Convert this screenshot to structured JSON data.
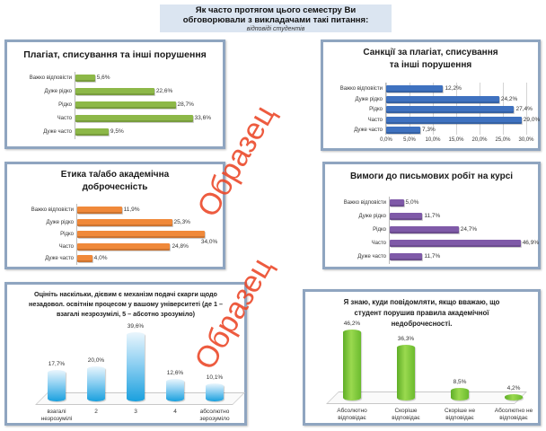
{
  "header": {
    "title": "Як часто протягом цього семестру Ви обговорювали з викладачами такі питання:",
    "title_line1": "Як часто протягом цього семестру Ви",
    "title_line2": "обговорювали з викладачами такі питання:",
    "subtitle": "відповіді студентів"
  },
  "watermark": {
    "text": "Образец",
    "color": "#ec4a2b"
  },
  "chart_data": [
    {
      "id": "plagiarism",
      "type": "bar",
      "orientation": "horizontal",
      "title": "Плагіат, списування  та інші порушення",
      "categories": [
        "Важко відповісти",
        "Дуже рідко",
        "Рідко",
        "Часто",
        "Дуже часто"
      ],
      "values": [
        5.6,
        22.6,
        28.7,
        33.6,
        9.5
      ],
      "value_labels": [
        "5,6%",
        "22,6%",
        "28,7%",
        "33,6%",
        "9,5%"
      ],
      "color": "#8db848",
      "xlim": [
        0,
        35
      ],
      "grid": false
    },
    {
      "id": "sanctions",
      "type": "bar",
      "orientation": "horizontal",
      "title": "Санкції за плагіат, списування та інші порушення",
      "title_line1": "Санкції за плагіат, списування",
      "title_line2": "та інші порушення",
      "categories": [
        "Важко відповісти",
        "Дуже рідко",
        "Рідко",
        "Часто",
        "Дуже часто"
      ],
      "values": [
        12.2,
        24.2,
        27.4,
        29.0,
        7.3
      ],
      "value_labels": [
        "12,2%",
        "24,2%",
        "27,4%",
        "29,0%",
        "7,3%"
      ],
      "color": "#3f72c0",
      "xlim": [
        0,
        30
      ],
      "xticks": [
        "0,0%",
        "5,0%",
        "10,0%",
        "15,0%",
        "20,0%",
        "25,0%",
        "30,0%"
      ],
      "grid": true
    },
    {
      "id": "ethics",
      "type": "bar",
      "orientation": "horizontal",
      "title": "Етика та/або академічна доброчесність",
      "title_line1": "Етика та/або академічна",
      "title_line2": "доброчесність",
      "categories": [
        "Важко відповісти",
        "Дуже рідко",
        "Рідко",
        "Часто",
        "Дуже часто"
      ],
      "values": [
        11.9,
        25.3,
        34.0,
        24.8,
        4.0
      ],
      "value_labels": [
        "11,9%",
        "25,3%",
        "34,0%",
        "24,8%",
        "4,0%"
      ],
      "color": "#f0893a",
      "xlim": [
        0,
        35
      ],
      "grid": false
    },
    {
      "id": "writing",
      "type": "bar",
      "orientation": "horizontal",
      "title": "Вимоги до письмових  робіт на курсі",
      "categories": [
        "Важко відповісти",
        "Дуже рідко",
        "Рідко",
        "Часто",
        "Дуже часто"
      ],
      "values": [
        5.0,
        11.7,
        24.7,
        46.9,
        11.7
      ],
      "value_labels": [
        "5,0%",
        "11,7%",
        "24,7%",
        "46,9%",
        "11,7%"
      ],
      "color": "#7f5aa8",
      "xlim": [
        0,
        47
      ],
      "grid": false
    },
    {
      "id": "complaints",
      "type": "bar",
      "orientation": "vertical",
      "title": "Оцініть наскільки,  дієвим є механізм подачі скарги щодо незадовол. освітнім  процесом у вашому університеті (де 1 – взагалі незрозумілі, 5 – абсотно зрозуміло)",
      "title_line1": "Оцініть наскільки,  дієвим є механізм подачі скарги щодо",
      "title_line2": "незадовол. освітнім  процесом у вашому університеті (де 1 –",
      "title_line3": "взагалі незрозумілі, 5 – абсотно зрозуміло)",
      "categories": [
        "взагалі незрозумілі",
        "2",
        "3",
        "4",
        "абсолютно зерозуміло"
      ],
      "category_lines": [
        [
          "взагалі",
          "незрозумілі"
        ],
        [
          "2",
          ""
        ],
        [
          "3",
          ""
        ],
        [
          "4",
          ""
        ],
        [
          "абсолютно",
          "зерозуміло"
        ]
      ],
      "values": [
        17.7,
        20.0,
        39.6,
        12.6,
        10.1
      ],
      "value_labels": [
        "17,7%",
        "20,0%",
        "39,6%",
        "12,6%",
        "10,1%"
      ],
      "color": "#2aa7e0",
      "ylim": [
        0,
        40
      ]
    },
    {
      "id": "reporting",
      "type": "bar",
      "orientation": "vertical",
      "title": "Я знаю, куди повідомляти, якщо вважаю, що студент порушив правила академічної недоброчесності.",
      "title_line1": "Я знаю, куди повідомляти, якщо вважаю, що",
      "title_line2": "студент порушив правила академічної",
      "title_line3": "недоброчесності.",
      "categories": [
        "Абсолютно відповідає",
        "Скоріше відповідає",
        "Скоріше не відповідає",
        "Абсолютно не відповідає"
      ],
      "category_lines": [
        [
          "Абсолютно",
          "відповідає"
        ],
        [
          "Скоріше",
          "відповідає"
        ],
        [
          "Скоріше не",
          "відповідає"
        ],
        [
          "Абсолютно не",
          "відповідає"
        ]
      ],
      "values": [
        46.2,
        36.3,
        8.5,
        4.2
      ],
      "value_labels": [
        "46,2%",
        "36,3%",
        "8,5%",
        "4,2%"
      ],
      "color": "#7cc43a",
      "ylim": [
        0,
        47
      ]
    }
  ]
}
